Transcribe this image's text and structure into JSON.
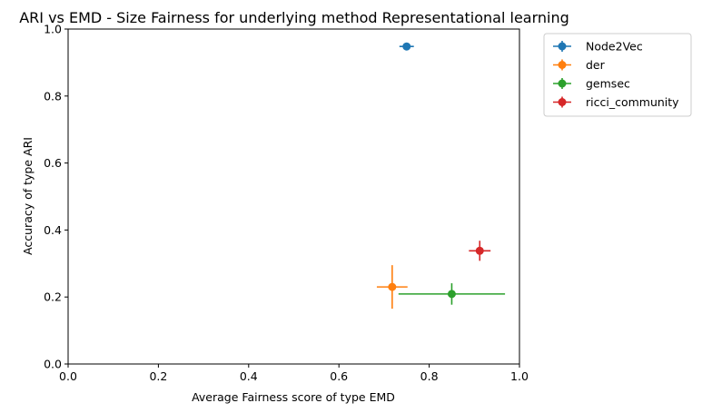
{
  "chart_data": {
    "type": "scatter",
    "title": "ARI vs EMD - Size Fairness for underlying method Representational learning",
    "xlabel": "Average Fairness score of type EMD",
    "ylabel": "Accuracy of type ARI",
    "xlim": [
      0.0,
      1.0
    ],
    "ylim": [
      0.0,
      1.0
    ],
    "xticks": [
      "0.0",
      "0.2",
      "0.4",
      "0.6",
      "0.8",
      "1.0"
    ],
    "yticks": [
      "0.0",
      "0.2",
      "0.4",
      "0.6",
      "0.8",
      "1.0"
    ],
    "grid": false,
    "legend_position": "outside upper right",
    "series": [
      {
        "name": "Node2Vec",
        "color": "#1f77b4",
        "x": 0.75,
        "y": 0.948,
        "xerr": 0.016,
        "yerr": 0.008
      },
      {
        "name": "der",
        "color": "#ff7f0e",
        "x": 0.718,
        "y": 0.23,
        "xerr": 0.034,
        "yerr": 0.065
      },
      {
        "name": "gemsec",
        "color": "#2ca02c",
        "x": 0.85,
        "y": 0.209,
        "xerr": 0.118,
        "yerr": 0.032
      },
      {
        "name": "ricci_community",
        "color": "#d62728",
        "x": 0.912,
        "y": 0.338,
        "xerr": 0.024,
        "yerr": 0.03
      }
    ]
  }
}
